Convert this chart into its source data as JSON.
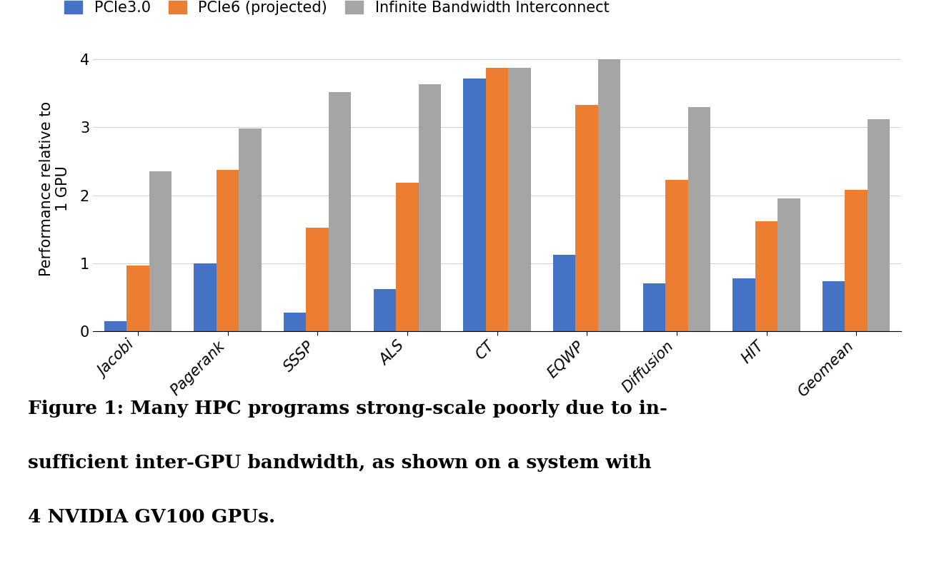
{
  "categories": [
    "Jacobi",
    "Pagerank",
    "SSSP",
    "ALS",
    "CT",
    "EQWP",
    "Diffusion",
    "HIT",
    "Geomean"
  ],
  "pcie30": [
    0.15,
    1.0,
    0.27,
    0.62,
    3.72,
    1.12,
    0.7,
    0.78,
    0.73
  ],
  "pcie6": [
    0.97,
    2.37,
    1.52,
    2.18,
    3.87,
    3.33,
    2.23,
    1.62,
    2.08
  ],
  "infinite": [
    2.35,
    2.98,
    3.52,
    3.63,
    3.87,
    4.0,
    3.3,
    1.95,
    3.12
  ],
  "colors": {
    "pcie30": "#4472C4",
    "pcie6": "#ED7D31",
    "infinite": "#A5A5A5"
  },
  "legend_labels": [
    "PCIe3.0",
    "PCIe6 (projected)",
    "Infinite Bandwidth Interconnect"
  ],
  "ylabel": "Performance relative to\n1 GPU",
  "ylim": [
    0,
    4.2
  ],
  "yticks": [
    0,
    1,
    2,
    3,
    4
  ],
  "figsize": [
    13.0,
    8.0
  ],
  "caption_line1": "Figure 1: Many HPC programs strong-scale poorly due to in-",
  "caption_line2": "sufficient inter-GPU bandwidth, as shown on a system with",
  "caption_line3": "4 NVIDIA GV100 GPUs.",
  "bar_width": 0.25
}
